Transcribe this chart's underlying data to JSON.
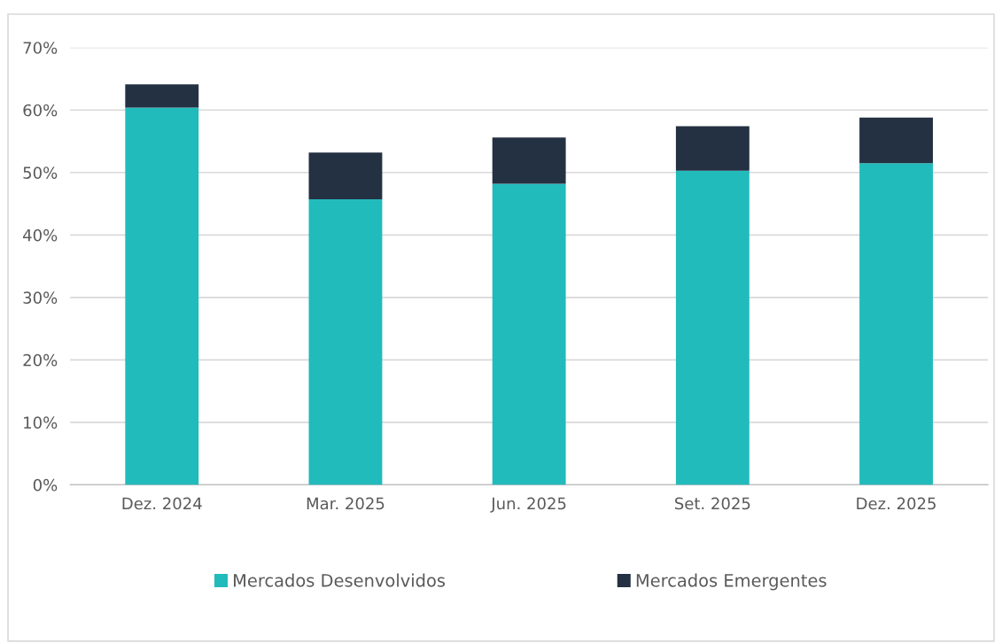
{
  "chart_data": {
    "type": "bar",
    "stacked": true,
    "categories": [
      "Dez. 2024",
      "Mar. 2025",
      "Jun. 2025",
      "Set. 2025",
      "Dez. 2025"
    ],
    "series": [
      {
        "name": "Mercados Desenvolvidos",
        "color": "#22bbbc",
        "values": [
          60.4,
          45.7,
          48.2,
          50.3,
          51.5
        ]
      },
      {
        "name": "Mercados Emergentes",
        "color": "#243142",
        "values": [
          3.7,
          7.5,
          7.4,
          7.1,
          7.3
        ]
      }
    ],
    "ylim": [
      0,
      70
    ],
    "yticks": [
      {
        "value": 0,
        "label": "0%"
      },
      {
        "value": 10,
        "label": "10%"
      },
      {
        "value": 20,
        "label": "20%"
      },
      {
        "value": 30,
        "label": "30%"
      },
      {
        "value": 40,
        "label": "40%"
      },
      {
        "value": 50,
        "label": "50%"
      },
      {
        "value": 60,
        "label": "60%"
      },
      {
        "value": 70,
        "label": "70%"
      }
    ],
    "grid": "y",
    "legend": "bottom"
  }
}
